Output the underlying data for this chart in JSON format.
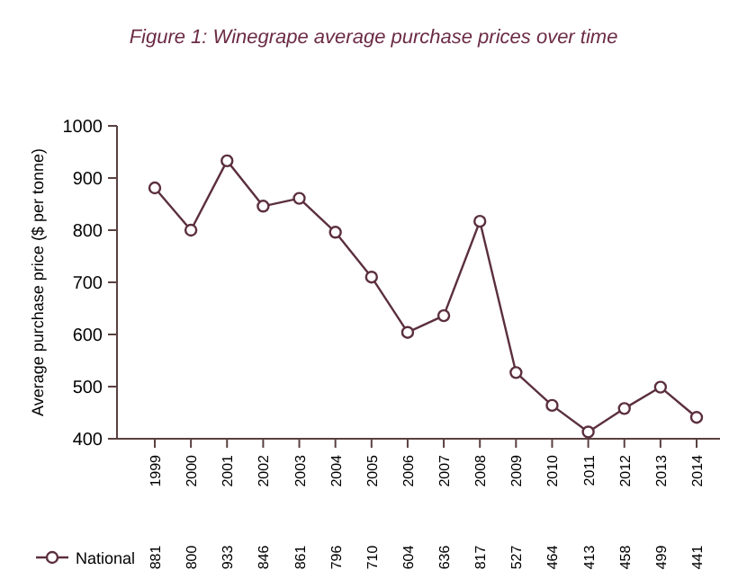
{
  "chart_data": {
    "type": "line",
    "title": "Figure 1: Winegrape average purchase prices over time",
    "ylabel": "Average purchase price ($ per tonne)",
    "categories": [
      "1999",
      "2000",
      "2001",
      "2002",
      "2003",
      "2004",
      "2005",
      "2006",
      "2007",
      "2008",
      "2009",
      "2010",
      "2011",
      "2012",
      "2013",
      "2014"
    ],
    "series": [
      {
        "name": "National",
        "color": "#5b2f3e",
        "values": [
          881,
          800,
          933,
          846,
          861,
          796,
          710,
          604,
          636,
          817,
          527,
          464,
          413,
          458,
          499,
          441
        ]
      }
    ],
    "ylim": [
      400,
      1000
    ],
    "yticks": [
      400,
      500,
      600,
      700,
      800,
      900,
      1000
    ],
    "grid": false,
    "legend": "bottom left",
    "marker": "circle",
    "line_style": "solid",
    "data_labels": true
  }
}
